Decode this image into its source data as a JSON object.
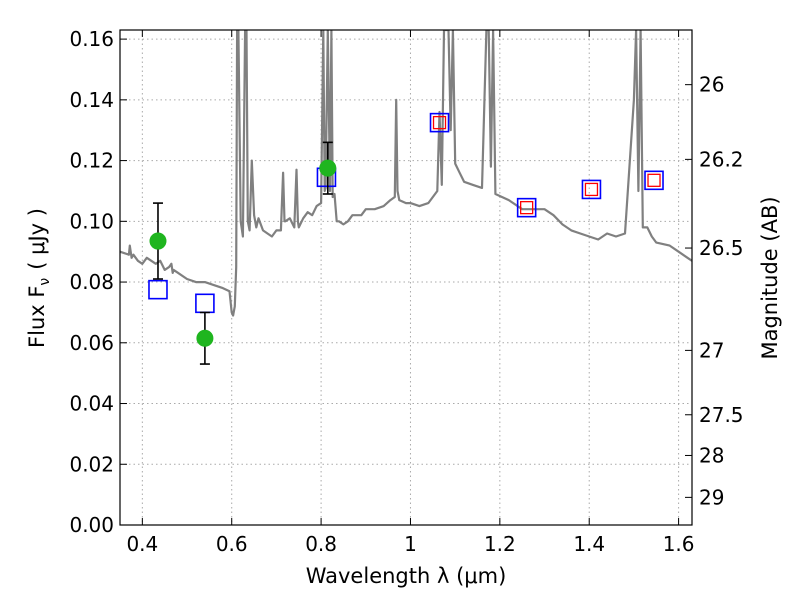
{
  "chart_data": {
    "type": "scatter",
    "xlabel": "Wavelength  λ (μm)",
    "ylabel": "Flux  F",
    "ylabel_subscript": "ν",
    "ylabel_unit": "( μJy )",
    "y2label": "Magnitude (AB)",
    "xlim": [
      0.35,
      1.63
    ],
    "ylim": [
      0.0,
      0.163
    ],
    "grid": true,
    "x_ticks": [
      0.4,
      0.6,
      0.8,
      1.0,
      1.2,
      1.4,
      1.6
    ],
    "x_tick_labels": [
      "0.4",
      "0.6",
      "0.8",
      "1",
      "1.2",
      "1.4",
      "1.6"
    ],
    "y_ticks": [
      0.0,
      0.02,
      0.04,
      0.06,
      0.08,
      0.1,
      0.12,
      0.14,
      0.16
    ],
    "y_tick_labels": [
      "0.00",
      "0.02",
      "0.04",
      "0.06",
      "0.08",
      "0.10",
      "0.12",
      "0.14",
      "0.16"
    ],
    "y2_tick_labels": [
      "26",
      "26.2",
      "26.5",
      "27",
      "27.5",
      "28",
      "29"
    ],
    "y2_tick_flux": [
      0.145,
      0.1204,
      0.0912,
      0.0575,
      0.0363,
      0.0229,
      0.0091
    ],
    "colors": {
      "model": "#808080",
      "observed": "#1fb51f",
      "model_band": "#0000ff",
      "inner_square": "#ff0000",
      "grid": "#aaaaaa",
      "error_bar": "#000000"
    },
    "series": [
      {
        "kind": "model_sed",
        "x": [
          0.35,
          0.37,
          0.372,
          0.376,
          0.38,
          0.39,
          0.4,
          0.41,
          0.42,
          0.43,
          0.44,
          0.45,
          0.46,
          0.465,
          0.468,
          0.47,
          0.48,
          0.5,
          0.52,
          0.54,
          0.56,
          0.58,
          0.595,
          0.6,
          0.603,
          0.607,
          0.61,
          0.612,
          0.615,
          0.62,
          0.625,
          0.63,
          0.633,
          0.636,
          0.64,
          0.645,
          0.65,
          0.655,
          0.66,
          0.67,
          0.68,
          0.69,
          0.7,
          0.71,
          0.715,
          0.718,
          0.72,
          0.73,
          0.74,
          0.745,
          0.748,
          0.75,
          0.76,
          0.77,
          0.78,
          0.79,
          0.8,
          0.805,
          0.808,
          0.81,
          0.815,
          0.82,
          0.823,
          0.826,
          0.83,
          0.835,
          0.84,
          0.85,
          0.86,
          0.87,
          0.88,
          0.89,
          0.9,
          0.92,
          0.94,
          0.955,
          0.965,
          0.968,
          0.971,
          0.975,
          0.99,
          1.0,
          1.02,
          1.04,
          1.06,
          1.065,
          1.07,
          1.075,
          1.08,
          1.085,
          1.09,
          1.095,
          1.1,
          1.11,
          1.12,
          1.14,
          1.16,
          1.17,
          1.175,
          1.18,
          1.185,
          1.19,
          1.22,
          1.25,
          1.28,
          1.3,
          1.32,
          1.34,
          1.36,
          1.38,
          1.4,
          1.42,
          1.44,
          1.46,
          1.48,
          1.5,
          1.505,
          1.51,
          1.515,
          1.52,
          1.53,
          1.54,
          1.55,
          1.58,
          1.6,
          1.62,
          1.63
        ],
        "y": [
          0.09,
          0.089,
          0.092,
          0.088,
          0.089,
          0.087,
          0.086,
          0.088,
          0.087,
          0.086,
          0.087,
          0.084,
          0.085,
          0.086,
          0.083,
          0.084,
          0.083,
          0.081,
          0.08,
          0.08,
          0.079,
          0.078,
          0.077,
          0.07,
          0.069,
          0.072,
          0.085,
          0.163,
          0.163,
          0.1,
          0.095,
          0.163,
          0.163,
          0.1,
          0.097,
          0.12,
          0.102,
          0.098,
          0.101,
          0.097,
          0.096,
          0.095,
          0.097,
          0.097,
          0.116,
          0.1,
          0.1,
          0.101,
          0.098,
          0.117,
          0.1,
          0.098,
          0.101,
          0.103,
          0.102,
          0.105,
          0.106,
          0.163,
          0.11,
          0.111,
          0.163,
          0.11,
          0.163,
          0.108,
          0.109,
          0.1,
          0.1,
          0.099,
          0.1,
          0.102,
          0.102,
          0.102,
          0.104,
          0.104,
          0.105,
          0.107,
          0.108,
          0.14,
          0.11,
          0.107,
          0.106,
          0.106,
          0.105,
          0.106,
          0.11,
          0.136,
          0.112,
          0.163,
          0.163,
          0.163,
          0.13,
          0.163,
          0.119,
          0.116,
          0.113,
          0.112,
          0.111,
          0.163,
          0.163,
          0.118,
          0.163,
          0.109,
          0.107,
          0.104,
          0.104,
          0.104,
          0.102,
          0.099,
          0.097,
          0.096,
          0.095,
          0.094,
          0.096,
          0.095,
          0.096,
          0.14,
          0.163,
          0.11,
          0.163,
          0.098,
          0.098,
          0.095,
          0.093,
          0.092,
          0.09,
          0.088,
          0.087
        ]
      },
      {
        "kind": "observed",
        "x": [
          0.435,
          0.54,
          0.815
        ],
        "y": [
          0.0935,
          0.0615,
          0.1175
        ],
        "err": [
          0.0125,
          0.0085,
          0.0085
        ]
      },
      {
        "kind": "model_band",
        "x": [
          0.435,
          0.54,
          0.812,
          1.065,
          1.26,
          1.405,
          1.545
        ],
        "y": [
          0.0775,
          0.073,
          0.1145,
          0.1325,
          0.1045,
          0.1105,
          0.1135
        ]
      },
      {
        "kind": "model_band_inner",
        "x": [
          1.065,
          1.26,
          1.405,
          1.545
        ],
        "y": [
          0.1325,
          0.1045,
          0.1105,
          0.1135
        ]
      }
    ]
  }
}
